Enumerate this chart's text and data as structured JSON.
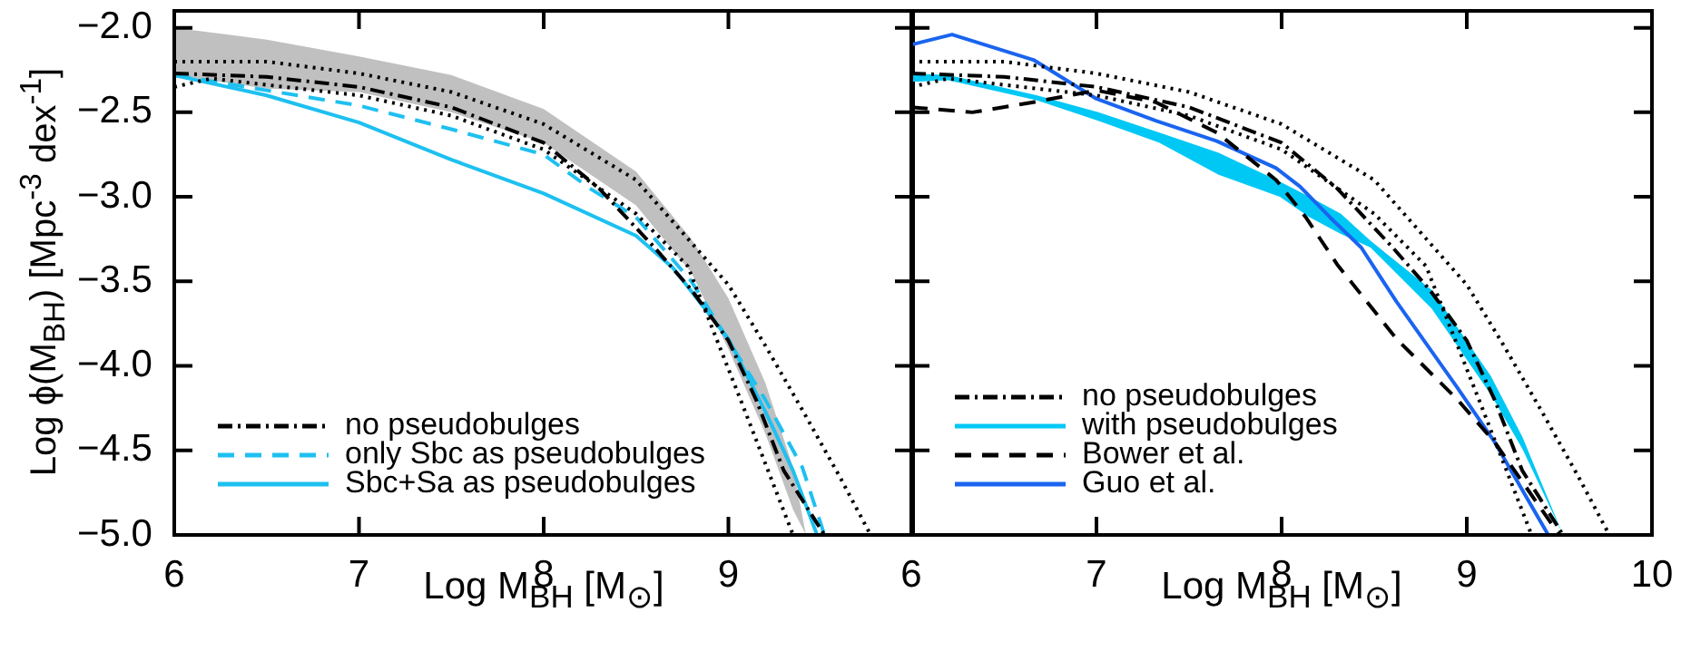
{
  "chart_data": [
    {
      "type": "line",
      "xlabel": "Log M$_{BH}$ [M$_{⊙}$]",
      "ylabel": "Log ϕ(M$_{BH}$) [Mpc$^{-3}$ dex$^{-1}$]",
      "xlim": [
        6,
        10
      ],
      "xticks": [
        6,
        7,
        8,
        9,
        {
          "value": 10,
          "label": null
        }
      ],
      "ylim": [
        -5.0,
        -1.9
      ],
      "yticks": [
        {
          "value": -5.0,
          "label": "−5.0"
        },
        {
          "value": -4.5,
          "label": "−4.5"
        },
        {
          "value": -4.0,
          "label": "−4.0"
        },
        {
          "value": -3.5,
          "label": "−3.5"
        },
        {
          "value": -3.0,
          "label": "−3.0"
        },
        {
          "value": -2.5,
          "label": "−2.5"
        },
        {
          "value": -2.0,
          "label": "−2.0"
        }
      ],
      "legend": "bottom left",
      "marker": "none",
      "series": [
        {
          "color": "#c0c0c0",
          "x": [
            6,
            6.5,
            7,
            7.5,
            8,
            8.5,
            8.8,
            9.0,
            9.2,
            9.35,
            9.42
          ],
          "values": [
            null,
            null,
            null,
            null,
            null,
            null,
            null,
            null,
            null,
            null,
            null
          ],
          "upper": [
            -2.0,
            -2.07,
            -2.17,
            -2.28,
            -2.48,
            -2.85,
            -3.25,
            -3.6,
            -4.1,
            -4.6,
            -5.0
          ],
          "lower": [
            -2.28,
            -2.36,
            -2.38,
            -2.5,
            -2.68,
            -3.05,
            -3.45,
            -3.9,
            -4.4,
            -4.85,
            -5.0
          ]
        },
        {
          "color": "#000000",
          "line_style": "dotted",
          "x": [
            6,
            6.5,
            7,
            7.5,
            8,
            8.5,
            9.0,
            9.2,
            9.4,
            9.6,
            9.77
          ],
          "values": [
            -2.2,
            -2.2,
            -2.27,
            -2.38,
            -2.57,
            -2.9,
            -3.52,
            -3.88,
            -4.26,
            -4.65,
            -5.0
          ]
        },
        {
          "color": "#000000",
          "line_style": "dotted",
          "x": [
            6,
            6.2,
            7,
            7.5,
            8,
            8.5,
            8.78,
            9.08,
            9.35
          ],
          "values": [
            -2.35,
            -2.3,
            -2.4,
            -2.52,
            -2.72,
            -3.1,
            -3.41,
            -4.24,
            -5.0
          ]
        },
        {
          "name": "no pseudobulges",
          "color": "#000000",
          "line_style": "dashdot",
          "x": [
            6,
            6.5,
            7,
            7.5,
            8,
            8.3,
            8.6,
            8.8,
            9.0,
            9.15,
            9.3,
            9.52
          ],
          "values": [
            -2.27,
            -2.29,
            -2.35,
            -2.47,
            -2.68,
            -2.95,
            -3.3,
            -3.55,
            -3.85,
            -4.2,
            -4.62,
            -5.0
          ]
        },
        {
          "name": "only Sbc as pseudobulges",
          "color": "#1ec0f0",
          "line_style": "dashed",
          "x": [
            6,
            6.5,
            7,
            7.5,
            8,
            8.25,
            8.5,
            8.8,
            9.0,
            9.2,
            9.4,
            9.52
          ],
          "values": [
            -2.28,
            -2.37,
            -2.46,
            -2.6,
            -2.75,
            -2.95,
            -3.12,
            -3.5,
            -3.85,
            -4.2,
            -4.6,
            -5.0
          ]
        },
        {
          "name": "Sbc+Sa as pseudobulges",
          "color": "#1ec0f0",
          "line_style": "solid",
          "x": [
            6,
            6.5,
            7,
            7.5,
            8,
            8.5,
            8.7,
            9.0,
            9.2,
            9.35,
            9.48
          ],
          "values": [
            -2.28,
            -2.4,
            -2.56,
            -2.78,
            -2.98,
            -3.23,
            -3.42,
            -3.84,
            -4.27,
            -4.62,
            -5.0
          ]
        }
      ]
    },
    {
      "type": "line",
      "xlabel": "Log M$_{BH}$ [M$_{⊙}$]",
      "xlim": [
        6,
        10
      ],
      "xticks": [
        6,
        7,
        8,
        9,
        10
      ],
      "ylim": [
        -5.0,
        -1.9
      ],
      "yticks": [
        {
          "value": -5.0,
          "label": null
        },
        {
          "value": -4.5,
          "label": null
        },
        {
          "value": -4.0,
          "label": null
        },
        {
          "value": -3.5,
          "label": null
        },
        {
          "value": -3.0,
          "label": null
        },
        {
          "value": -2.5,
          "label": null
        },
        {
          "value": -2.0,
          "label": null
        }
      ],
      "tick_labels": "x",
      "legend": "bottom left",
      "marker": "none",
      "series": [
        {
          "color": "#000000",
          "line_style": "dotted",
          "x": [
            6,
            6.5,
            7,
            7.5,
            8,
            8.5,
            9.0,
            9.2,
            9.4,
            9.6,
            9.77
          ],
          "values": [
            -2.2,
            -2.2,
            -2.27,
            -2.38,
            -2.57,
            -2.9,
            -3.52,
            -3.88,
            -4.26,
            -4.65,
            -5.0
          ]
        },
        {
          "color": "#000000",
          "line_style": "dotted",
          "x": [
            6,
            6.2,
            7,
            7.5,
            8,
            8.5,
            8.78,
            9.08,
            9.35
          ],
          "values": [
            -2.35,
            -2.3,
            -2.4,
            -2.52,
            -2.72,
            -3.1,
            -3.41,
            -4.24,
            -5.0
          ]
        },
        {
          "name": "no pseudobulges",
          "color": "#000000",
          "line_style": "dashdot",
          "x": [
            6,
            6.5,
            7,
            7.5,
            8,
            8.3,
            8.6,
            8.8,
            9.0,
            9.15,
            9.3,
            9.52
          ],
          "values": [
            -2.27,
            -2.29,
            -2.35,
            -2.47,
            -2.68,
            -2.95,
            -3.3,
            -3.55,
            -3.85,
            -4.2,
            -4.62,
            -5.0
          ]
        },
        {
          "name": "with pseudobulges",
          "color": "#00c8f5",
          "x": [
            6,
            6.2,
            6.68,
            7.01,
            7.34,
            7.66,
            7.99,
            8.15,
            8.32,
            8.48,
            8.81,
            9.13,
            9.3,
            9.52
          ],
          "values": [
            null,
            null,
            null,
            null,
            null,
            null,
            null,
            null,
            null,
            null,
            null,
            null,
            null,
            null
          ],
          "upper": [
            -2.27,
            -2.28,
            -2.4,
            -2.5,
            -2.62,
            -2.74,
            -2.91,
            -3.0,
            -3.1,
            -3.26,
            -3.55,
            -4.06,
            -4.42,
            -5.0
          ],
          "lower": [
            -2.32,
            -2.31,
            -2.43,
            -2.55,
            -2.68,
            -2.87,
            -3.0,
            -3.12,
            -3.22,
            -3.3,
            -3.66,
            -4.17,
            -4.49,
            -5.0
          ]
        },
        {
          "name": "Bower et al.",
          "color": "#000000",
          "line_style": "dashed",
          "x": [
            6,
            6.33,
            6.66,
            7.0,
            7.32,
            7.65,
            7.97,
            8.13,
            8.3,
            8.62,
            8.95,
            9.15,
            9.5
          ],
          "values": [
            -2.47,
            -2.5,
            -2.44,
            -2.37,
            -2.44,
            -2.62,
            -2.9,
            -3.12,
            -3.4,
            -3.84,
            -4.2,
            -4.45,
            -5.0
          ]
        },
        {
          "name": "Guo et al.",
          "color": "#1a64f0",
          "line_style": "solid",
          "x": [
            6,
            6.22,
            6.66,
            7.0,
            7.32,
            7.65,
            7.97,
            8.1,
            8.26,
            8.43,
            8.62,
            8.95,
            9.15,
            9.44
          ],
          "values": [
            -2.1,
            -2.04,
            -2.19,
            -2.42,
            -2.55,
            -2.67,
            -2.83,
            -2.94,
            -3.12,
            -3.3,
            -3.62,
            -4.13,
            -4.45,
            -5.0
          ]
        }
      ]
    }
  ]
}
